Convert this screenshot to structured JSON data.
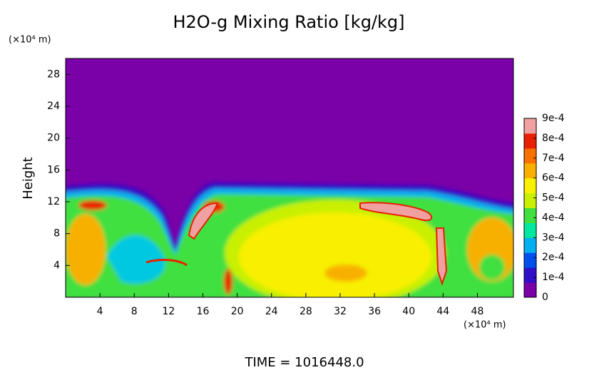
{
  "chart_data": {
    "type": "heatmap",
    "title": "H2O-g Mixing Ratio [kg/kg]",
    "ylabel": "Height",
    "yunit": "(×10⁴ m)",
    "xunit": "(×10⁴ m)",
    "xlim": [
      0,
      52.2
    ],
    "xticks": [
      4,
      8,
      12,
      16,
      20,
      24,
      28,
      32,
      36,
      40,
      44,
      48
    ],
    "ylim": [
      0,
      30
    ],
    "yticks": [
      4,
      8,
      12,
      16,
      20,
      24,
      28
    ],
    "clim": [
      0,
      0.0009
    ],
    "cticks": [
      0,
      {
        "value": 0.0001,
        "label": "1e-4"
      },
      {
        "value": 0.0002,
        "label": "2e-4"
      },
      {
        "value": 0.0003,
        "label": "3e-4"
      },
      {
        "value": 0.0004,
        "label": "4e-4"
      },
      {
        "value": 0.0005,
        "label": "5e-4"
      },
      {
        "value": 0.0006,
        "label": "6e-4"
      },
      {
        "value": 0.0007,
        "label": "7e-4"
      },
      {
        "value": 0.0008,
        "label": "8e-4"
      },
      {
        "value": 0.0009,
        "label": "9e-4"
      }
    ],
    "colors": [
      "#7a00a8",
      "#3010c8",
      "#0050f0",
      "#00b0f0",
      "#00e8a0",
      "#40e040",
      "#c8f000",
      "#f8f000",
      "#f8b000",
      "#f87000",
      "#e82000",
      "#f0a0a0"
    ],
    "footer": "TIME = 1016448.0"
  }
}
